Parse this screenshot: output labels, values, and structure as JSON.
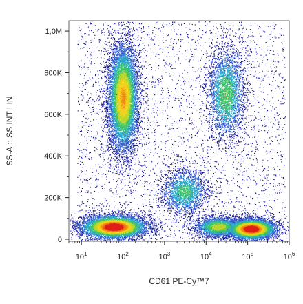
{
  "chart_data": {
    "type": "scatter",
    "title": "",
    "xlabel": "CD61 PE-Cy™7",
    "ylabel": "SS-A :: SS INT LIN",
    "x_scale": "log",
    "y_scale": "linear",
    "xlim": [
      5,
      1000000
    ],
    "ylim": [
      -10000,
      1050000
    ],
    "x_ticks": [
      {
        "value": 10,
        "base": "10",
        "exp": "1"
      },
      {
        "value": 100,
        "base": "10",
        "exp": "2"
      },
      {
        "value": 1000,
        "base": "10",
        "exp": "3"
      },
      {
        "value": 10000,
        "base": "10",
        "exp": "4"
      },
      {
        "value": 100000,
        "base": "10",
        "exp": "5"
      },
      {
        "value": 1000000,
        "base": "10",
        "exp": "6"
      }
    ],
    "y_ticks": [
      {
        "value": 0,
        "label": "0"
      },
      {
        "value": 200000,
        "label": "200K"
      },
      {
        "value": 400000,
        "label": "400K"
      },
      {
        "value": 600000,
        "label": "600K"
      },
      {
        "value": 800000,
        "label": "800K"
      },
      {
        "value": 1000000,
        "label": "1,0M"
      }
    ],
    "grid": false,
    "legend": "none",
    "density_colormap": [
      "#1a1aa0",
      "#2e5fd0",
      "#2aa7c8",
      "#3cc46a",
      "#b8d82a",
      "#f2d21a",
      "#f08a14",
      "#e0201a"
    ],
    "populations": [
      {
        "x_center": 100,
        "y_center": 680000,
        "x_spread_decades": 0.18,
        "y_spread": 130000,
        "count": 9000,
        "peak": 0.75
      },
      {
        "x_center": 60,
        "y_center": 60000,
        "x_spread_decades": 0.4,
        "y_spread": 28000,
        "count": 7000,
        "peak": 1.0
      },
      {
        "x_center": 30000,
        "y_center": 700000,
        "x_spread_decades": 0.22,
        "y_spread": 110000,
        "count": 3200,
        "peak": 0.45
      },
      {
        "x_center": 3000,
        "y_center": 230000,
        "x_spread_decades": 0.28,
        "y_spread": 55000,
        "count": 2200,
        "peak": 0.4
      },
      {
        "x_center": 120000,
        "y_center": 50000,
        "x_spread_decades": 0.3,
        "y_spread": 25000,
        "count": 6000,
        "peak": 1.0
      },
      {
        "x_center": 20000,
        "y_center": 60000,
        "x_spread_decades": 0.3,
        "y_spread": 25000,
        "count": 2500,
        "peak": 0.55
      }
    ]
  }
}
